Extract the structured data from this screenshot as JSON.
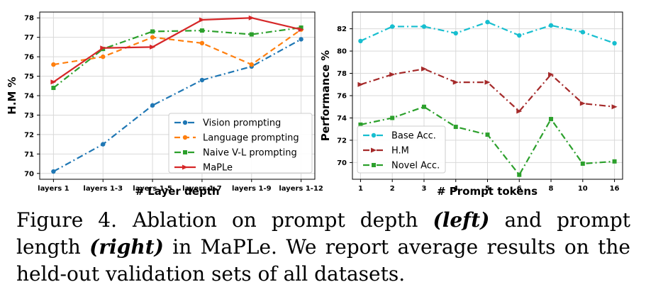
{
  "chart_data": [
    {
      "type": "line",
      "xlabel": "# Layer depth",
      "ylabel": "H.M %",
      "categories": [
        "layers 1",
        "layers 1-3",
        "layers 1-5",
        "layers 1-7",
        "layers 1-9",
        "layers 1-12"
      ],
      "ylim": [
        69.7,
        78.3
      ],
      "yticks": [
        70,
        71,
        72,
        73,
        74,
        75,
        76,
        77,
        78
      ],
      "grid": true,
      "legend_position": "bottom-right",
      "series": [
        {
          "name": "Vision prompting",
          "values": [
            70.1,
            71.5,
            73.5,
            74.8,
            75.5,
            76.9
          ],
          "color": "#1f77b4",
          "dash": "9 4 2 4",
          "marker": "circle"
        },
        {
          "name": "Language prompting",
          "values": [
            75.6,
            76.0,
            77.0,
            76.7,
            75.6,
            77.4
          ],
          "color": "#ff7f0e",
          "dash": "8 5",
          "marker": "circle"
        },
        {
          "name": "Naive V-L prompting",
          "values": [
            74.4,
            76.4,
            77.3,
            77.35,
            77.15,
            77.5
          ],
          "color": "#2ca02c",
          "dash": "9 4 2 4",
          "marker": "square"
        },
        {
          "name": "MaPLe",
          "values": [
            74.7,
            76.45,
            76.5,
            77.9,
            78.0,
            77.4
          ],
          "color": "#d62728",
          "dash": "",
          "marker": "arrow"
        }
      ]
    },
    {
      "type": "line",
      "xlabel": "# Prompt tokens",
      "ylabel": "Performance %",
      "categories": [
        "1",
        "2",
        "3",
        "4",
        "5",
        "6",
        "8",
        "10",
        "16"
      ],
      "ylim": [
        68.5,
        83.5
      ],
      "yticks": [
        70,
        72,
        74,
        76,
        78,
        80,
        82
      ],
      "grid": true,
      "legend_position": "bottom-left",
      "series": [
        {
          "name": "Base Acc.",
          "values": [
            80.9,
            82.2,
            82.2,
            81.6,
            82.6,
            81.4,
            82.3,
            81.7,
            80.7
          ],
          "color": "#17becf",
          "dash": "9 4 2 4",
          "marker": "circle"
        },
        {
          "name": "H.M",
          "values": [
            77.0,
            77.9,
            78.4,
            77.2,
            77.2,
            74.6,
            77.9,
            75.3,
            75.0
          ],
          "color": "#a52a2a",
          "dash": "9 4 2 4",
          "marker": "arrow"
        },
        {
          "name": "Novel Acc.",
          "values": [
            73.4,
            74.0,
            75.0,
            73.2,
            72.5,
            68.9,
            73.9,
            69.9,
            70.1
          ],
          "color": "#2ca02c",
          "dash": "9 4 2 4",
          "marker": "square"
        }
      ]
    }
  ],
  "caption": {
    "number": "Figure 4.",
    "text_a": "Ablation on prompt depth ",
    "left": "(left)",
    "text_b": " and prompt length ",
    "right": "(right)",
    "text_c": " in MaPLe. We report average results on the held-out validation sets of all datasets."
  }
}
